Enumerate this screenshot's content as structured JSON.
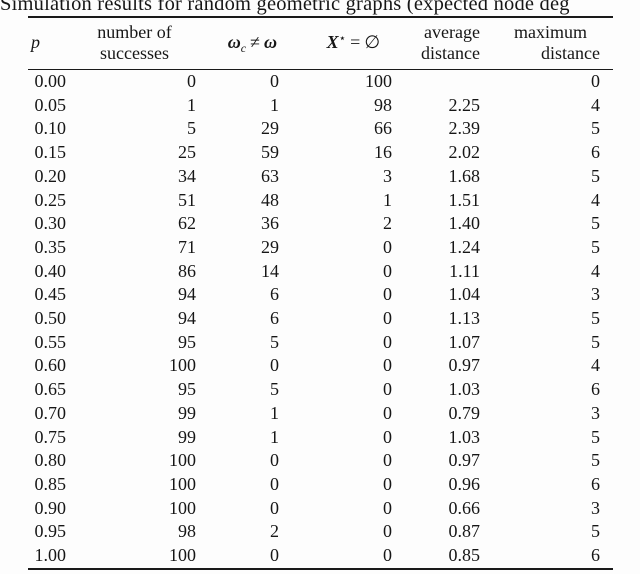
{
  "page": {
    "caption": "Simulation results for random geometric graphs (expected node deg"
  },
  "table": {
    "columns": [
      {
        "label": "p"
      },
      {
        "line1": "number of",
        "line2": "successes"
      },
      {
        "math": {
          "base1": "ω",
          "sub": "c",
          "op": "≠",
          "base2": "ω"
        }
      },
      {
        "math": {
          "base": "X",
          "sup": "⋆",
          "op": "=",
          "rhs": "∅"
        }
      },
      {
        "line1": "average",
        "line2": "distance"
      },
      {
        "line1": "maximum",
        "line2": "distance"
      }
    ],
    "rows": [
      [
        "0.00",
        "0",
        "0",
        "100",
        "",
        "0"
      ],
      [
        "0.05",
        "1",
        "1",
        "98",
        "2.25",
        "4"
      ],
      [
        "0.10",
        "5",
        "29",
        "66",
        "2.39",
        "5"
      ],
      [
        "0.15",
        "25",
        "59",
        "16",
        "2.02",
        "6"
      ],
      [
        "0.20",
        "34",
        "63",
        "3",
        "1.68",
        "5"
      ],
      [
        "0.25",
        "51",
        "48",
        "1",
        "1.51",
        "4"
      ],
      [
        "0.30",
        "62",
        "36",
        "2",
        "1.40",
        "5"
      ],
      [
        "0.35",
        "71",
        "29",
        "0",
        "1.24",
        "5"
      ],
      [
        "0.40",
        "86",
        "14",
        "0",
        "1.11",
        "4"
      ],
      [
        "0.45",
        "94",
        "6",
        "0",
        "1.04",
        "3"
      ],
      [
        "0.50",
        "94",
        "6",
        "0",
        "1.13",
        "5"
      ],
      [
        "0.55",
        "95",
        "5",
        "0",
        "1.07",
        "5"
      ],
      [
        "0.60",
        "100",
        "0",
        "0",
        "0.97",
        "4"
      ],
      [
        "0.65",
        "95",
        "5",
        "0",
        "1.03",
        "6"
      ],
      [
        "0.70",
        "99",
        "1",
        "0",
        "0.79",
        "3"
      ],
      [
        "0.75",
        "99",
        "1",
        "0",
        "1.03",
        "5"
      ],
      [
        "0.80",
        "100",
        "0",
        "0",
        "0.97",
        "5"
      ],
      [
        "0.85",
        "100",
        "0",
        "0",
        "0.96",
        "6"
      ],
      [
        "0.90",
        "100",
        "0",
        "0",
        "0.66",
        "3"
      ],
      [
        "0.95",
        "98",
        "2",
        "0",
        "0.87",
        "5"
      ],
      [
        "1.00",
        "100",
        "0",
        "0",
        "0.85",
        "6"
      ]
    ]
  }
}
